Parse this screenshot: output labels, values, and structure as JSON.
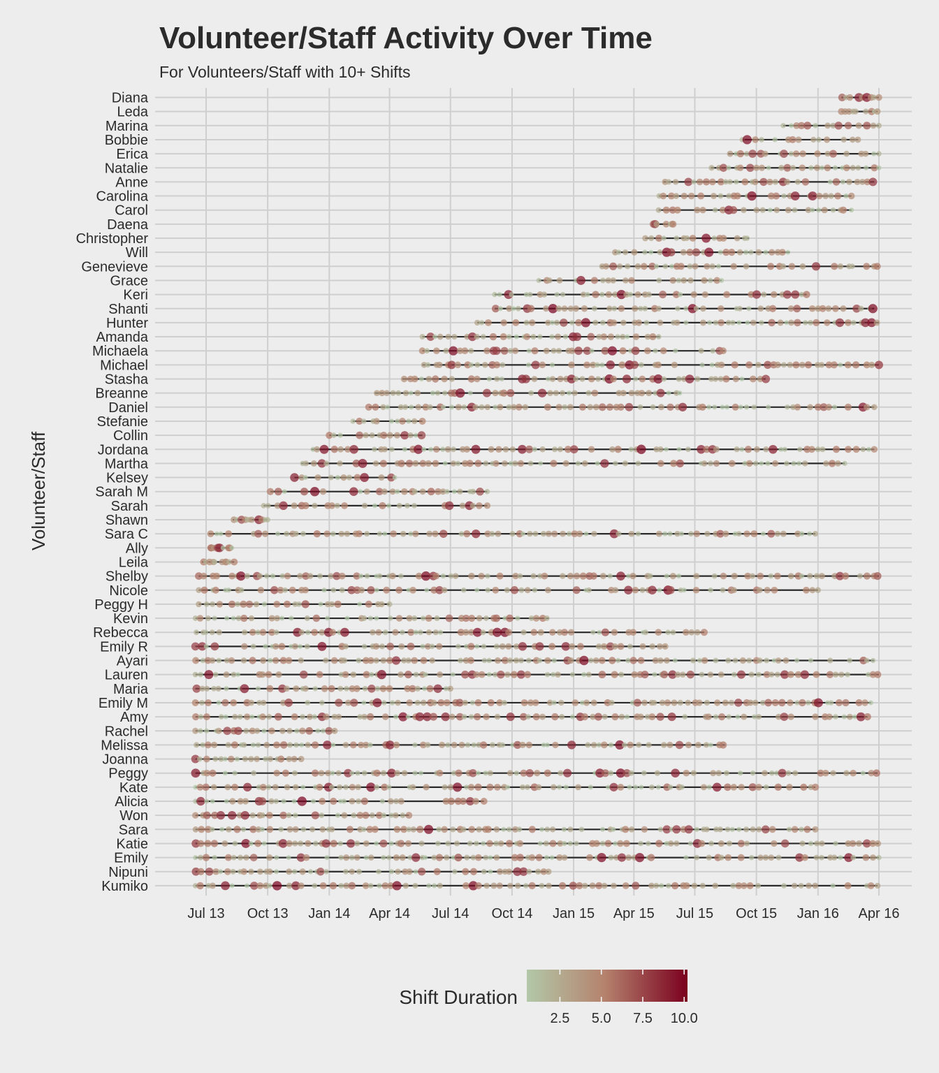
{
  "title": "Volunteer/Staff Activity Over Time",
  "subtitle": "For Volunteers/Staff with 10+ Shifts",
  "chart_data": {
    "type": "scatter",
    "title": "Volunteer/Staff Activity Over Time",
    "subtitle": "For Volunteers/Staff with 10+ Shifts",
    "xlabel": "",
    "ylabel": "Volunteer/Staff",
    "x_axis": {
      "type": "date",
      "range": [
        "2013-05-20",
        "2016-04-25"
      ],
      "ticks": [
        "2013-07-01",
        "2013-10-01",
        "2014-01-01",
        "2014-04-01",
        "2014-07-01",
        "2014-10-01",
        "2015-01-01",
        "2015-04-01",
        "2015-07-01",
        "2015-10-01",
        "2016-01-01",
        "2016-04-01"
      ],
      "tick_labels": [
        "Jul 13",
        "Oct 13",
        "Jan 14",
        "Apr 14",
        "Jul 14",
        "Oct 14",
        "Jan 15",
        "Apr 15",
        "Jul 15",
        "Oct 15",
        "Jan 16",
        "Apr 16"
      ]
    },
    "grid": true,
    "legend": {
      "title": "Shift Duration",
      "placement": "bottom",
      "type": "colorbar",
      "range": [
        0.5,
        10.2
      ],
      "ticks": [
        2.5,
        5.0,
        7.5,
        10.0
      ],
      "tick_labels": [
        "2.5",
        "5.0",
        "7.5",
        "10.0"
      ],
      "low_color": "#b2c8a8",
      "mid_color": "#b5836e",
      "high_color": "#7a001e"
    },
    "series": [
      {
        "name": "Diana",
        "first": "2016-02-05",
        "last": "2016-04-01",
        "active_until": "2016-04-01"
      },
      {
        "name": "Leda",
        "first": "2016-02-05",
        "last": "2016-03-30",
        "active_until": "2016-03-30"
      },
      {
        "name": "Marina",
        "first": "2015-11-10",
        "last": "2016-04-01",
        "active_until": "2016-04-01"
      },
      {
        "name": "Bobbie",
        "first": "2015-09-10",
        "last": "2016-03-01",
        "active_until": "2016-03-01"
      },
      {
        "name": "Erica",
        "first": "2015-08-20",
        "last": "2016-04-01",
        "active_until": "2016-04-01"
      },
      {
        "name": "Natalie",
        "first": "2015-07-25",
        "last": "2016-04-01",
        "active_until": "2016-04-01"
      },
      {
        "name": "Anne",
        "first": "2015-05-15",
        "last": "2016-03-25",
        "active_until": "2016-03-25"
      },
      {
        "name": "Carolina",
        "first": "2015-05-08",
        "last": "2016-02-20",
        "active_until": "2016-02-20"
      },
      {
        "name": "Carol",
        "first": "2015-05-08",
        "last": "2016-02-20",
        "active_until": "2016-02-20"
      },
      {
        "name": "Daena",
        "first": "2015-04-28",
        "last": "2015-06-01",
        "active_until": "2015-06-01"
      },
      {
        "name": "Christopher",
        "first": "2015-04-18",
        "last": "2015-09-20",
        "active_until": "2015-09-20"
      },
      {
        "name": "Will",
        "first": "2015-03-03",
        "last": "2015-11-20",
        "active_until": "2015-11-20"
      },
      {
        "name": "Genevieve",
        "first": "2015-02-10",
        "last": "2016-04-01",
        "active_until": "2016-04-01"
      },
      {
        "name": "Grace",
        "first": "2014-11-10",
        "last": "2015-08-10",
        "active_until": "2015-08-10"
      },
      {
        "name": "Keri",
        "first": "2014-09-05",
        "last": "2015-12-15",
        "active_until": "2015-12-15"
      },
      {
        "name": "Shanti",
        "first": "2014-09-05",
        "last": "2016-03-25",
        "active_until": "2016-03-25"
      },
      {
        "name": "Hunter",
        "first": "2014-08-10",
        "last": "2016-04-01",
        "active_until": "2016-04-01"
      },
      {
        "name": "Amanda",
        "first": "2014-05-20",
        "last": "2015-05-10",
        "active_until": "2015-05-10"
      },
      {
        "name": "Michaela",
        "first": "2014-05-20",
        "last": "2015-08-15",
        "active_until": "2015-08-15"
      },
      {
        "name": "Michael",
        "first": "2014-05-20",
        "last": "2016-04-01",
        "active_until": "2016-04-01"
      },
      {
        "name": "Stasha",
        "first": "2014-04-20",
        "last": "2015-10-15",
        "active_until": "2015-10-15"
      },
      {
        "name": "Breanne",
        "first": "2014-03-10",
        "last": "2015-06-10",
        "active_until": "2015-06-10"
      },
      {
        "name": "Daniel",
        "first": "2014-03-01",
        "last": "2016-03-25",
        "active_until": "2016-03-25"
      },
      {
        "name": "Stefanie",
        "first": "2014-02-05",
        "last": "2014-05-20",
        "active_until": "2014-05-20"
      },
      {
        "name": "Collin",
        "first": "2014-01-01",
        "last": "2014-05-20",
        "active_until": "2014-05-20"
      },
      {
        "name": "Jordana",
        "first": "2013-12-05",
        "last": "2016-03-25",
        "active_until": "2016-03-25"
      },
      {
        "name": "Martha",
        "first": "2013-11-20",
        "last": "2016-02-10",
        "active_until": "2016-02-10"
      },
      {
        "name": "Kelsey",
        "first": "2013-11-10",
        "last": "2014-04-10",
        "active_until": "2014-04-10"
      },
      {
        "name": "Sarah M",
        "first": "2013-10-05",
        "last": "2014-08-25",
        "active_until": "2014-08-25"
      },
      {
        "name": "Sarah",
        "first": "2013-09-25",
        "last": "2014-08-25",
        "active_until": "2014-08-25"
      },
      {
        "name": "Shawn",
        "first": "2013-08-10",
        "last": "2013-10-01",
        "active_until": "2013-10-01"
      },
      {
        "name": "Sara C",
        "first": "2013-07-05",
        "last": "2015-12-28",
        "active_until": "2015-12-28"
      },
      {
        "name": "Ally",
        "first": "2013-07-05",
        "last": "2013-08-10",
        "active_until": "2013-08-10"
      },
      {
        "name": "Leila",
        "first": "2013-06-25",
        "last": "2013-08-12",
        "active_until": "2013-08-12"
      },
      {
        "name": "Shelby",
        "first": "2013-06-20",
        "last": "2016-04-01",
        "active_until": "2016-04-01"
      },
      {
        "name": "Nicole",
        "first": "2013-06-20",
        "last": "2016-01-01",
        "active_until": "2016-01-01"
      },
      {
        "name": "Peggy H",
        "first": "2013-06-20",
        "last": "2014-04-01",
        "active_until": "2014-04-01"
      },
      {
        "name": "Kevin",
        "first": "2013-06-15",
        "last": "2014-11-25",
        "active_until": "2014-11-25"
      },
      {
        "name": "Rebecca",
        "first": "2013-06-15",
        "last": "2015-07-15",
        "active_until": "2015-07-15"
      },
      {
        "name": "Emily R",
        "first": "2013-06-15",
        "last": "2015-05-20",
        "active_until": "2015-05-20"
      },
      {
        "name": "Ayari",
        "first": "2013-06-15",
        "last": "2016-03-25",
        "active_until": "2016-03-25"
      },
      {
        "name": "Lauren",
        "first": "2013-06-15",
        "last": "2016-04-01",
        "active_until": "2016-04-01"
      },
      {
        "name": "Maria",
        "first": "2013-06-15",
        "last": "2014-07-01",
        "active_until": "2014-07-01"
      },
      {
        "name": "Emily M",
        "first": "2013-06-15",
        "last": "2016-03-20",
        "active_until": "2016-03-20"
      },
      {
        "name": "Amy",
        "first": "2013-06-15",
        "last": "2016-03-15",
        "active_until": "2016-03-15"
      },
      {
        "name": "Rachel",
        "first": "2013-06-15",
        "last": "2014-01-10",
        "active_until": "2014-01-10"
      },
      {
        "name": "Melissa",
        "first": "2013-06-15",
        "last": "2015-08-15",
        "active_until": "2015-08-15"
      },
      {
        "name": "Joanna",
        "first": "2013-06-15",
        "last": "2013-11-20",
        "active_until": "2013-11-20"
      },
      {
        "name": "Peggy",
        "first": "2013-06-15",
        "last": "2016-03-30",
        "active_until": "2016-03-30"
      },
      {
        "name": "Kate",
        "first": "2013-06-15",
        "last": "2015-12-28",
        "active_until": "2015-12-28"
      },
      {
        "name": "Alicia",
        "first": "2013-06-15",
        "last": "2014-08-20",
        "active_until": "2014-08-20"
      },
      {
        "name": "Won",
        "first": "2013-06-15",
        "last": "2014-04-30",
        "active_until": "2014-04-30"
      },
      {
        "name": "Sara",
        "first": "2013-06-15",
        "last": "2015-12-28",
        "active_until": "2015-12-28"
      },
      {
        "name": "Katie",
        "first": "2013-06-15",
        "last": "2016-04-01",
        "active_until": "2016-04-01"
      },
      {
        "name": "Emily",
        "first": "2013-06-15",
        "last": "2016-04-01",
        "active_until": "2016-04-01"
      },
      {
        "name": "Nipuni",
        "first": "2013-06-15",
        "last": "2014-11-25",
        "active_until": "2014-11-25"
      },
      {
        "name": "Kumiko",
        "first": "2013-06-15",
        "last": "2016-03-30",
        "active_until": "2016-03-30"
      }
    ]
  }
}
